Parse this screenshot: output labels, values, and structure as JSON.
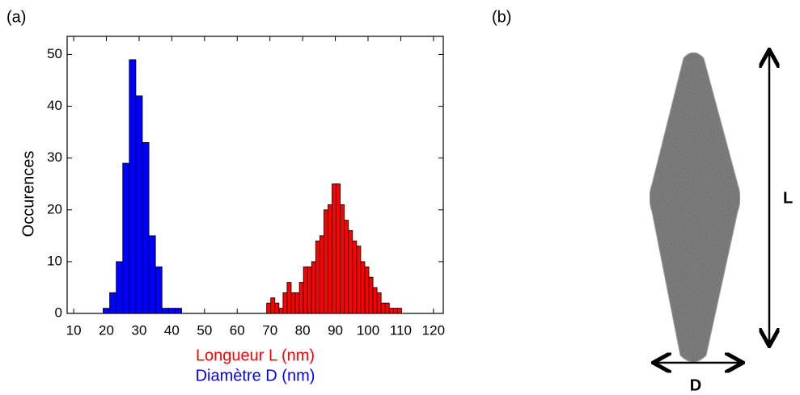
{
  "panel_a": {
    "label": "(a)"
  },
  "chart_data": {
    "type": "histogram",
    "ylabel": "Occurences",
    "xlim": [
      8,
      123
    ],
    "xticks": [
      10,
      20,
      30,
      40,
      50,
      60,
      70,
      80,
      90,
      100,
      110,
      120
    ],
    "ylim": [
      0,
      53.5
    ],
    "yticks": [
      0,
      10,
      20,
      30,
      40,
      50
    ],
    "grid": false,
    "series": [
      {
        "name": "Longueur L (nm)",
        "color": "#ff0000",
        "bins": [
          69,
          70.25,
          71.5,
          72.75,
          74,
          75.25,
          76.5,
          77.75,
          79,
          80.25,
          81.5,
          82.75,
          84,
          85.25,
          86.5,
          87.75,
          89,
          90.25,
          91.5,
          92.75,
          94,
          95.25,
          96.5,
          97.75,
          99,
          100.25,
          101.5,
          102.75,
          104,
          105.25,
          106.5,
          107.75,
          109,
          110.25
        ],
        "values": [
          2,
          3,
          2,
          1,
          4,
          6,
          4,
          4,
          6,
          9,
          9,
          10,
          14,
          15,
          20,
          21,
          25,
          25,
          21,
          18,
          16,
          14,
          13,
          10,
          9,
          7,
          5,
          4,
          2,
          2,
          1,
          1,
          1
        ]
      },
      {
        "name": "Diamètre D (nm)",
        "color": "#0000ff",
        "bins": [
          19,
          21,
          23,
          25,
          27,
          29,
          31,
          33,
          35,
          37,
          39,
          41,
          43
        ],
        "values": [
          1,
          4,
          10,
          29,
          49,
          42,
          33,
          15,
          9,
          1,
          1,
          1
        ]
      }
    ]
  },
  "panel_b": {
    "label": "(b)",
    "length_label": "L",
    "diameter_label": "D"
  }
}
